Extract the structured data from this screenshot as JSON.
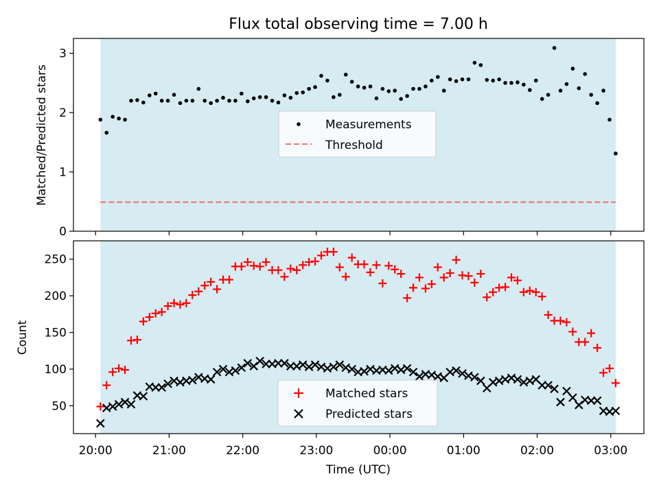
{
  "figure": {
    "title": "Flux total observing time = 7.00 h"
  },
  "colors": {
    "background_band": "#add8e6",
    "measurement": "#000000",
    "threshold": "#ff0000",
    "matched": "#ff0000",
    "predicted": "#000000"
  },
  "chart_data": [
    {
      "type": "scatter",
      "title": "Flux total observing time = 7.00 h",
      "xlabel": "",
      "ylabel": "Matched/Predicted stars",
      "x_axis_type": "time (hours from 20:00 UTC)",
      "xlim": [
        -0.3,
        7.45
      ],
      "ylim": [
        0,
        3.25
      ],
      "yticks": [
        0,
        1,
        2,
        3
      ],
      "ytick_labels": [
        "0",
        "1",
        "2",
        "3"
      ],
      "observing_window": [
        "20:04",
        "03:04"
      ],
      "legend": {
        "placement": "center",
        "entries": [
          "Measurements",
          "Threshold"
        ]
      },
      "threshold": 0.49,
      "series": [
        {
          "name": "Measurements",
          "marker": "dot",
          "x": [
            "20:04",
            "20:09",
            "20:14",
            "20:19",
            "20:24",
            "20:29",
            "20:34",
            "20:39",
            "20:44",
            "20:49",
            "20:54",
            "20:59",
            "21:04",
            "21:09",
            "21:14",
            "21:19",
            "21:24",
            "21:29",
            "21:34",
            "21:39",
            "21:44",
            "21:49",
            "21:54",
            "21:59",
            "22:04",
            "22:09",
            "22:14",
            "22:19",
            "22:24",
            "22:29",
            "22:34",
            "22:39",
            "22:44",
            "22:49",
            "22:54",
            "22:59",
            "23:04",
            "23:09",
            "23:14",
            "23:19",
            "23:24",
            "23:29",
            "23:34",
            "23:39",
            "23:44",
            "23:49",
            "23:54",
            "23:59",
            "00:04",
            "00:09",
            "00:14",
            "00:19",
            "00:24",
            "00:29",
            "00:34",
            "00:39",
            "00:44",
            "00:49",
            "00:54",
            "00:59",
            "01:04",
            "01:09",
            "01:14",
            "01:19",
            "01:24",
            "01:29",
            "01:34",
            "01:39",
            "01:44",
            "01:49",
            "01:54",
            "01:59",
            "02:04",
            "02:09",
            "02:14",
            "02:19",
            "02:24",
            "02:29",
            "02:34",
            "02:39",
            "02:44",
            "02:49",
            "02:54",
            "02:59",
            "03:04"
          ],
          "y": [
            1.88,
            1.66,
            1.93,
            1.9,
            1.88,
            2.2,
            2.21,
            2.17,
            2.29,
            2.32,
            2.2,
            2.2,
            2.3,
            2.16,
            2.2,
            2.2,
            2.4,
            2.2,
            2.16,
            2.2,
            2.25,
            2.2,
            2.2,
            2.32,
            2.19,
            2.24,
            2.26,
            2.26,
            2.2,
            2.17,
            2.29,
            2.25,
            2.33,
            2.34,
            2.4,
            2.43,
            2.62,
            2.54,
            2.26,
            2.3,
            2.64,
            2.52,
            2.44,
            2.42,
            2.44,
            2.24,
            2.4,
            2.36,
            2.37,
            2.23,
            2.28,
            2.4,
            2.4,
            2.44,
            2.54,
            2.6,
            2.37,
            2.56,
            2.53,
            2.56,
            2.56,
            2.84,
            2.8,
            2.55,
            2.54,
            2.56,
            2.5,
            2.5,
            2.51,
            2.47,
            2.38,
            2.54,
            2.23,
            2.3,
            3.09,
            2.37,
            2.48,
            2.74,
            2.41,
            2.65,
            2.3,
            2.16,
            2.37,
            1.88,
            1.31
          ]
        },
        {
          "name": "Threshold",
          "marker": "dashed-line",
          "x": [
            "20:04",
            "03:04"
          ],
          "y": [
            0.49,
            0.49
          ]
        }
      ]
    },
    {
      "type": "scatter",
      "xlabel": "Time (UTC)",
      "ylabel": "Count",
      "xlim": [
        -0.3,
        7.45
      ],
      "ylim": [
        12,
        275
      ],
      "yticks": [
        50,
        100,
        150,
        200,
        250
      ],
      "ytick_labels": [
        "50",
        "100",
        "150",
        "200",
        "250"
      ],
      "xticks": [
        0,
        1,
        2,
        3,
        4,
        5,
        6,
        7
      ],
      "xtick_labels": [
        "20:00",
        "21:00",
        "22:00",
        "23:00",
        "00:00",
        "01:00",
        "02:00",
        "03:00"
      ],
      "observing_window": [
        "20:04",
        "03:04"
      ],
      "legend": {
        "placement": "lower center",
        "entries": [
          "Matched stars",
          "Predicted stars"
        ]
      },
      "series": [
        {
          "name": "Matched stars",
          "marker": "plus",
          "x": [
            "20:04",
            "20:09",
            "20:14",
            "20:19",
            "20:24",
            "20:29",
            "20:34",
            "20:39",
            "20:44",
            "20:49",
            "20:54",
            "20:59",
            "21:04",
            "21:09",
            "21:14",
            "21:19",
            "21:24",
            "21:29",
            "21:34",
            "21:39",
            "21:44",
            "21:49",
            "21:54",
            "21:59",
            "22:04",
            "22:09",
            "22:14",
            "22:19",
            "22:24",
            "22:29",
            "22:34",
            "22:39",
            "22:44",
            "22:49",
            "22:54",
            "22:59",
            "23:04",
            "23:09",
            "23:14",
            "23:19",
            "23:24",
            "23:29",
            "23:34",
            "23:39",
            "23:44",
            "23:49",
            "23:54",
            "23:59",
            "00:04",
            "00:09",
            "00:14",
            "00:19",
            "00:24",
            "00:29",
            "00:34",
            "00:39",
            "00:44",
            "00:49",
            "00:54",
            "00:59",
            "01:04",
            "01:09",
            "01:14",
            "01:19",
            "01:24",
            "01:29",
            "01:34",
            "01:39",
            "01:44",
            "01:49",
            "01:54",
            "01:59",
            "02:04",
            "02:09",
            "02:14",
            "02:19",
            "02:24",
            "02:29",
            "02:34",
            "02:39",
            "02:44",
            "02:49",
            "02:54",
            "02:59",
            "03:04"
          ],
          "y": [
            49,
            78,
            96,
            101,
            99,
            139,
            140,
            165,
            171,
            176,
            178,
            186,
            190,
            188,
            190,
            201,
            206,
            214,
            219,
            209,
            222,
            222,
            240,
            240,
            246,
            241,
            240,
            246,
            235,
            235,
            226,
            237,
            235,
            242,
            246,
            247,
            255,
            260,
            260,
            239,
            226,
            252,
            243,
            243,
            232,
            242,
            217,
            241,
            236,
            230,
            197,
            211,
            225,
            210,
            216,
            239,
            225,
            231,
            249,
            228,
            227,
            218,
            230,
            198,
            205,
            211,
            212,
            225,
            221,
            205,
            207,
            205,
            199,
            174,
            166,
            166,
            164,
            151,
            137,
            137,
            149,
            129,
            95,
            101,
            81
          ]
        },
        {
          "name": "Predicted stars",
          "marker": "x",
          "x": [
            "20:04",
            "20:09",
            "20:14",
            "20:19",
            "20:24",
            "20:29",
            "20:34",
            "20:39",
            "20:44",
            "20:49",
            "20:54",
            "20:59",
            "21:04",
            "21:09",
            "21:14",
            "21:19",
            "21:24",
            "21:29",
            "21:34",
            "21:39",
            "21:44",
            "21:49",
            "21:54",
            "21:59",
            "22:04",
            "22:09",
            "22:14",
            "22:19",
            "22:24",
            "22:29",
            "22:34",
            "22:39",
            "22:44",
            "22:49",
            "22:54",
            "22:59",
            "23:04",
            "23:09",
            "23:14",
            "23:19",
            "23:24",
            "23:29",
            "23:34",
            "23:39",
            "23:44",
            "23:49",
            "23:54",
            "23:59",
            "00:04",
            "00:09",
            "00:14",
            "00:19",
            "00:24",
            "00:29",
            "00:34",
            "00:39",
            "00:44",
            "00:49",
            "00:54",
            "00:59",
            "01:04",
            "01:09",
            "01:14",
            "01:19",
            "01:24",
            "01:29",
            "01:34",
            "01:39",
            "01:44",
            "01:49",
            "01:54",
            "01:59",
            "02:04",
            "02:09",
            "02:14",
            "02:19",
            "02:24",
            "02:29",
            "02:34",
            "02:39",
            "02:44",
            "02:49",
            "02:54",
            "02:59",
            "03:04"
          ],
          "y": [
            26,
            47,
            49,
            52,
            55,
            52,
            64,
            63,
            76,
            75,
            75,
            80,
            84,
            82,
            84,
            85,
            89,
            87,
            86,
            96,
            100,
            96,
            98,
            102,
            108,
            104,
            111,
            107,
            107,
            108,
            108,
            104,
            104,
            106,
            103,
            106,
            103,
            101,
            103,
            106,
            102,
            100,
            96,
            97,
            100,
            98,
            99,
            98,
            101,
            99,
            101,
            96,
            90,
            93,
            92,
            90,
            88,
            96,
            98,
            94,
            91,
            89,
            84,
            74,
            82,
            84,
            86,
            88,
            86,
            82,
            84,
            86,
            78,
            78,
            73,
            55,
            70,
            61,
            51,
            58,
            57,
            57,
            43,
            42,
            43
          ]
        }
      ]
    }
  ]
}
